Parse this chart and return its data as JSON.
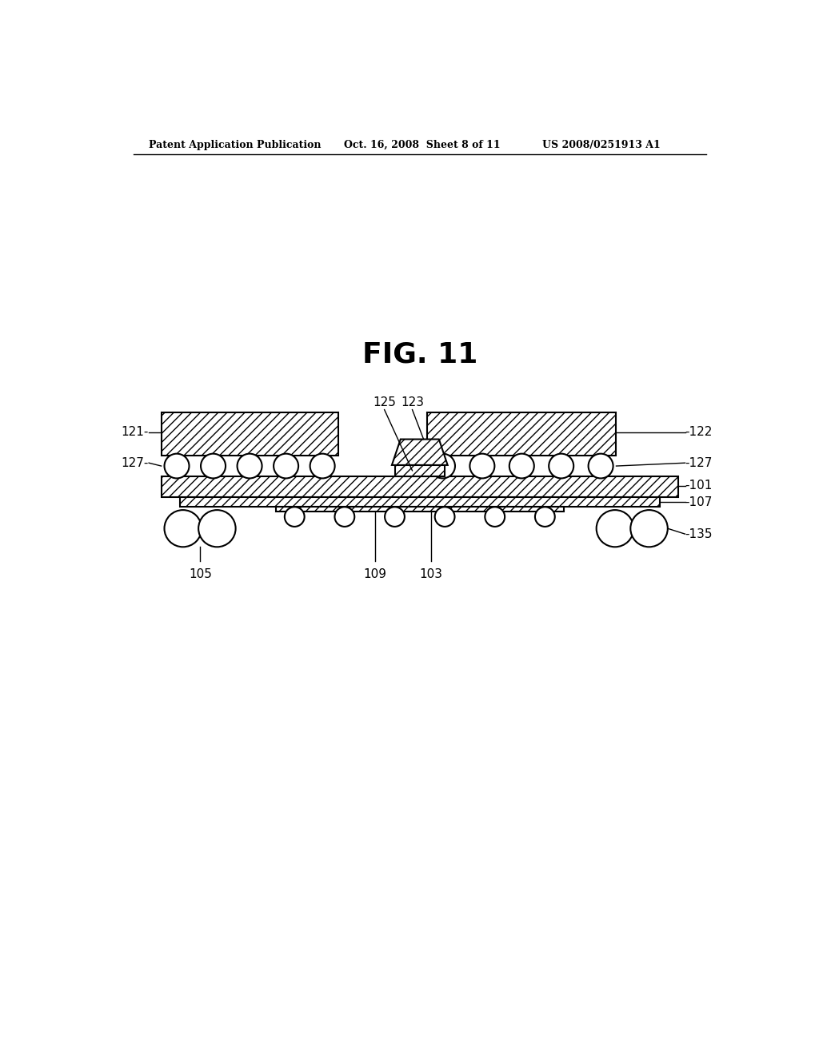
{
  "header_left": "Patent Application Publication",
  "header_mid": "Oct. 16, 2008  Sheet 8 of 11",
  "header_right": "US 2008/0251913 A1",
  "fig_title": "FIG. 11",
  "background_color": "#ffffff",
  "line_color": "#000000"
}
